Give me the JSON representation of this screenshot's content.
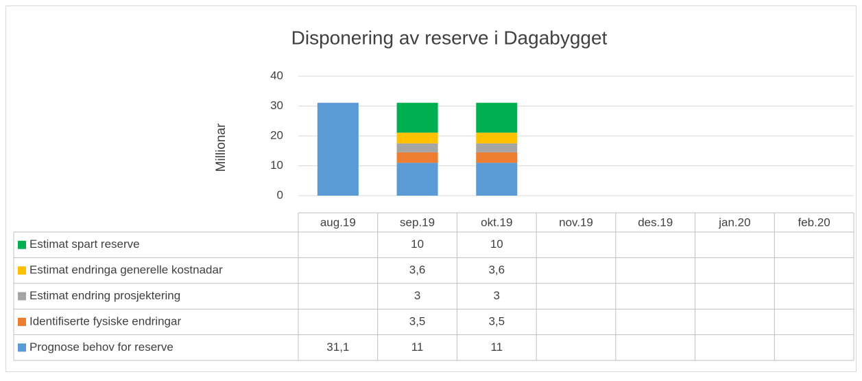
{
  "chart_data": {
    "type": "bar",
    "stacked": true,
    "title": "Disponering av  reserve i Dagabygget",
    "y_label": "Millionar",
    "categories": [
      "aug.19",
      "sep.19",
      "okt.19",
      "nov.19",
      "des.19",
      "jan.20",
      "feb.20"
    ],
    "series": [
      {
        "name": "Prognose behov for reserve",
        "color": "#5b9bd5",
        "values": [
          31.1,
          11,
          11,
          null,
          null,
          null,
          null
        ],
        "value_labels": [
          "31,1",
          "11",
          "11",
          null,
          null,
          null,
          null
        ]
      },
      {
        "name": "Identifiserte fysiske endringar",
        "color": "#ed7d31",
        "values": [
          null,
          3.5,
          3.5,
          null,
          null,
          null,
          null
        ],
        "value_labels": [
          null,
          "3,5",
          "3,5",
          null,
          null,
          null,
          null
        ]
      },
      {
        "name": "Estimat endring prosjektering",
        "color": "#a5a5a5",
        "values": [
          null,
          3,
          3,
          null,
          null,
          null,
          null
        ],
        "value_labels": [
          null,
          "3",
          "3",
          null,
          null,
          null,
          null
        ]
      },
      {
        "name": "Estimat endringa generelle kostnadar",
        "color": "#ffc000",
        "values": [
          null,
          3.6,
          3.6,
          null,
          null,
          null,
          null
        ],
        "value_labels": [
          null,
          "3,6",
          "3,6",
          null,
          null,
          null,
          null
        ]
      },
      {
        "name": "Estimat spart reserve",
        "color": "#00b050",
        "values": [
          null,
          10,
          10,
          null,
          null,
          null,
          null
        ],
        "value_labels": [
          null,
          "10",
          "10",
          null,
          null,
          null,
          null
        ]
      }
    ],
    "ylim": [
      0,
      40
    ],
    "yticks": [
      0,
      10,
      20,
      30,
      40
    ],
    "grid": true
  }
}
